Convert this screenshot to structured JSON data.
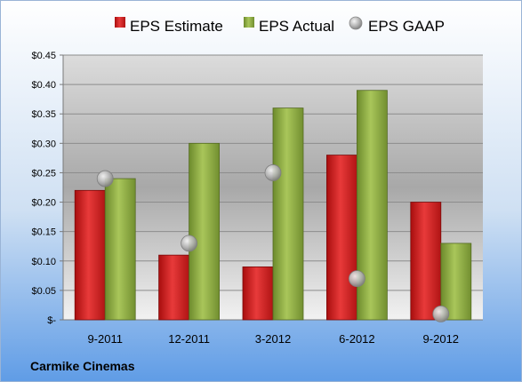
{
  "chart_data": {
    "type": "bar",
    "categories": [
      "9-2011",
      "12-2011",
      "3-2012",
      "6-2012",
      "9-2012"
    ],
    "series": [
      {
        "name": "EPS Estimate",
        "kind": "bar",
        "color": "#d42020",
        "values": [
          0.22,
          0.11,
          0.09,
          0.28,
          0.2
        ]
      },
      {
        "name": "EPS Actual",
        "kind": "bar",
        "color": "#8fb040",
        "values": [
          0.24,
          0.3,
          0.36,
          0.39,
          0.13
        ]
      },
      {
        "name": "EPS GAAP",
        "kind": "scatter",
        "color": "#b8b8b8",
        "values": [
          0.24,
          0.13,
          0.25,
          0.07,
          0.01
        ]
      }
    ],
    "yticks": [
      {
        "value": 0.0,
        "label": "$-"
      },
      {
        "value": 0.05,
        "label": "$0.05"
      },
      {
        "value": 0.1,
        "label": "$0.10"
      },
      {
        "value": 0.15,
        "label": "$0.15"
      },
      {
        "value": 0.2,
        "label": "$0.20"
      },
      {
        "value": 0.25,
        "label": "$0.25"
      },
      {
        "value": 0.3,
        "label": "$0.30"
      },
      {
        "value": 0.35,
        "label": "$0.35"
      },
      {
        "value": 0.4,
        "label": "$0.40"
      },
      {
        "value": 0.45,
        "label": "$0.45"
      }
    ],
    "ylim": [
      0,
      0.45
    ],
    "grid": true,
    "legend": "top",
    "footer": "Carmike Cinemas"
  }
}
